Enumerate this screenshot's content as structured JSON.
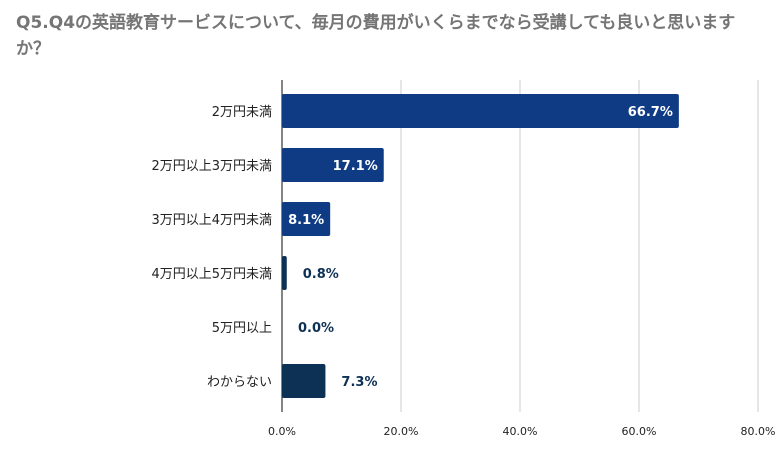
{
  "chart_data": {
    "type": "bar",
    "orientation": "horizontal",
    "title": "Q5.Q4の英語教育サービスについて、毎月の費用がいくらまでなら受講しても良いと思いますか？",
    "categories": [
      "2万円未満",
      "2万円以上3万円未満",
      "3万円以上4万円未満",
      "4万円以上5万円未満",
      "5万円以上",
      "わからない"
    ],
    "values": [
      66.7,
      17.1,
      8.1,
      0.8,
      0.0,
      7.3
    ],
    "value_labels": [
      "66.7%",
      "17.1%",
      "8.1%",
      "0.8%",
      "0.0%",
      "7.3%"
    ],
    "bar_colors": [
      "#0f3b84",
      "#0f3b84",
      "#0f3b84",
      "#0d3155",
      "#0d3155",
      "#0d3155"
    ],
    "xlim": [
      0,
      80
    ],
    "x_ticks": [
      0,
      20,
      40,
      60,
      80
    ],
    "x_tick_labels": [
      "0.0%",
      "20.0%",
      "40.0%",
      "60.0%",
      "80.0%"
    ],
    "grid": true,
    "legend": "none"
  }
}
